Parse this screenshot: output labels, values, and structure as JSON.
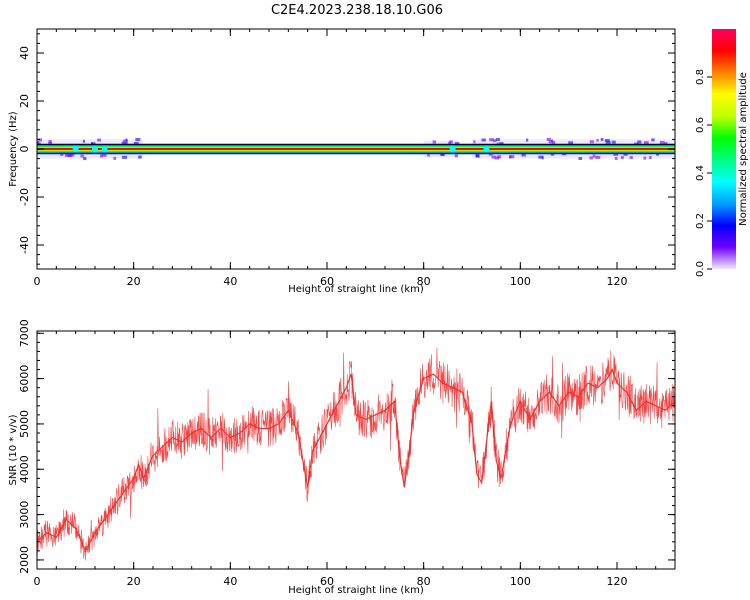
{
  "figure": {
    "title": "C2E4.2023.238.18.10.G06"
  },
  "chart_data": [
    {
      "type": "heatmap",
      "xlabel": "Height of straight line (km)",
      "ylabel": "Frequency (Hz)",
      "xlim": [
        0,
        132
      ],
      "ylim": [
        -50,
        50
      ],
      "x_ticks": [
        0,
        20,
        40,
        60,
        80,
        100,
        120
      ],
      "y_ticks": [
        -40,
        -20,
        0,
        20,
        40
      ],
      "colorbar": {
        "label": "Normalized spectral amplitude",
        "range": [
          0,
          1
        ],
        "ticks": [
          "0.0",
          "0.2",
          "0.4",
          "0.6",
          "0.8"
        ],
        "colormap": [
          "#f0e8ff",
          "#7000ff",
          "#0000ff",
          "#00a0ff",
          "#00ffff",
          "#00ff80",
          "#00ff00",
          "#c0ff00",
          "#ffff00",
          "#ff8000",
          "#ff0000",
          "#ff0060"
        ]
      },
      "dominant_frequency_hz": 0,
      "band_halfwidth_hz": 2,
      "spread_segments": [
        {
          "x": [
            0,
            22
          ],
          "halfwidth_hz": 4
        },
        {
          "x": [
            80,
            87
          ],
          "halfwidth_hz": 3.5
        },
        {
          "x": [
            90,
            132
          ],
          "halfwidth_hz": 4
        }
      ],
      "line_color": "#ff0000"
    },
    {
      "type": "line",
      "xlabel": "Height of straight line (km)",
      "ylabel": "SNR (10 * v/v)",
      "xlim": [
        0,
        132
      ],
      "ylim": [
        1800,
        7050
      ],
      "x_ticks": [
        0,
        20,
        40,
        60,
        80,
        100,
        120
      ],
      "y_ticks": [
        2000,
        3000,
        4000,
        5000,
        6000,
        7000
      ],
      "color": "#f03030",
      "x": [
        0,
        2,
        4,
        6,
        8,
        10,
        12,
        14,
        16,
        18,
        20,
        21,
        22,
        24,
        26,
        28,
        30,
        32,
        34,
        36,
        38,
        40,
        42,
        44,
        46,
        48,
        50,
        52,
        54,
        55,
        56,
        57,
        58,
        60,
        62,
        64,
        65,
        66,
        68,
        70,
        72,
        74,
        75,
        76,
        77,
        78,
        80,
        82,
        84,
        86,
        88,
        90,
        91,
        92,
        94,
        95,
        96,
        98,
        100,
        102,
        104,
        106,
        108,
        110,
        112,
        114,
        116,
        118,
        119,
        120,
        122,
        124,
        126,
        128,
        130,
        132
      ],
      "y": [
        2400,
        2600,
        2500,
        2900,
        2700,
        2200,
        2600,
        2900,
        3200,
        3500,
        3800,
        4100,
        3800,
        4300,
        4500,
        4700,
        4600,
        4800,
        4900,
        4700,
        4900,
        4700,
        4800,
        5000,
        4900,
        4900,
        5000,
        5300,
        4800,
        4200,
        3600,
        4400,
        4600,
        5000,
        5400,
        5800,
        6100,
        5200,
        5100,
        5200,
        5300,
        5500,
        4300,
        3600,
        4400,
        5300,
        6000,
        6100,
        5900,
        5800,
        5700,
        5000,
        3900,
        3700,
        5500,
        4200,
        3800,
        5000,
        5500,
        5100,
        5500,
        5700,
        5400,
        5700,
        5600,
        5900,
        5800,
        6000,
        6200,
        5900,
        5700,
        5300,
        5500,
        5400,
        5300,
        5500
      ]
    }
  ]
}
